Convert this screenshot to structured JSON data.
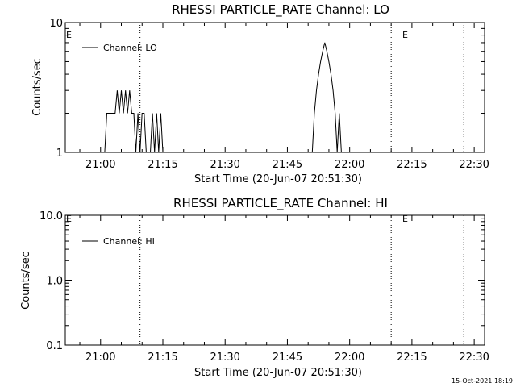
{
  "colors": {
    "background": "#ffffff",
    "foreground": "#000000"
  },
  "chart_data": [
    {
      "type": "line",
      "title": "RHESSI PARTICLE_RATE Channel: LO",
      "xlabel": "Start Time (20-Jun-07 20:51:30)",
      "ylabel": "Counts/sec",
      "y_scale": "log",
      "ylim": [
        1,
        10
      ],
      "xlim": [
        "20:51:30",
        "22:32:30"
      ],
      "x_ticks": [
        "21:00",
        "21:15",
        "21:30",
        "21:45",
        "22:00",
        "22:15",
        "22:30"
      ],
      "y_ticks": [
        "1",
        "10"
      ],
      "legend": {
        "position": "top-left",
        "entries": [
          "Channel: LO"
        ]
      },
      "marker_labels": [
        "E",
        "E"
      ],
      "vertical_dotted_lines": [
        "21:09:30",
        "22:10:00",
        "22:27:30"
      ],
      "series": [
        {
          "name": "Channel: LO",
          "x": [
            "21:01:00",
            "21:01:30",
            "21:03:00",
            "21:03:30",
            "21:04:00",
            "21:04:30",
            "21:05:00",
            "21:05:30",
            "21:06:00",
            "21:06:30",
            "21:07:00",
            "21:07:30",
            "21:08:00",
            "21:08:30",
            "21:09:00",
            "21:09:30",
            "21:10:00",
            "21:10:30",
            "21:11:00",
            "21:11:30",
            "21:12:00",
            "21:12:30",
            "21:13:00",
            "21:13:30",
            "21:14:00",
            "21:14:30",
            "21:15:00",
            "21:51:00",
            "21:51:30",
            "21:52:00",
            "21:52:30",
            "21:53:00",
            "21:53:30",
            "21:54:00",
            "21:54:30",
            "21:55:00",
            "21:55:30",
            "21:56:00",
            "21:56:30",
            "21:57:00",
            "21:57:30",
            "21:58:00",
            "21:58:30"
          ],
          "y": [
            1,
            2,
            2,
            2,
            3,
            2,
            3,
            2,
            3,
            2,
            3,
            2,
            2,
            1,
            2,
            1,
            2,
            2,
            1,
            1,
            1,
            2,
            1,
            2,
            1,
            2,
            1,
            1,
            2,
            3,
            4,
            5,
            6,
            7,
            6,
            5,
            4,
            3,
            2,
            1,
            2,
            1,
            1
          ]
        }
      ]
    },
    {
      "type": "line",
      "title": "RHESSI PARTICLE_RATE Channel: HI",
      "xlabel": "Start Time (20-Jun-07 20:51:30)",
      "ylabel": "Counts/sec",
      "y_scale": "log",
      "ylim": [
        0.1,
        10.0
      ],
      "xlim": [
        "20:51:30",
        "22:32:30"
      ],
      "x_ticks": [
        "21:00",
        "21:15",
        "21:30",
        "21:45",
        "22:00",
        "22:15",
        "22:30"
      ],
      "y_ticks": [
        "0.1",
        "1.0",
        "10.0"
      ],
      "legend": {
        "position": "top-left",
        "entries": [
          "Channel: HI"
        ]
      },
      "marker_labels": [
        "E",
        "E"
      ],
      "vertical_dotted_lines": [
        "21:09:30",
        "22:10:00",
        "22:27:30"
      ],
      "series": [
        {
          "name": "Channel: HI",
          "x": [],
          "y": []
        }
      ]
    }
  ],
  "footer": {
    "timestamp": "15-Oct-2021 18:19"
  }
}
